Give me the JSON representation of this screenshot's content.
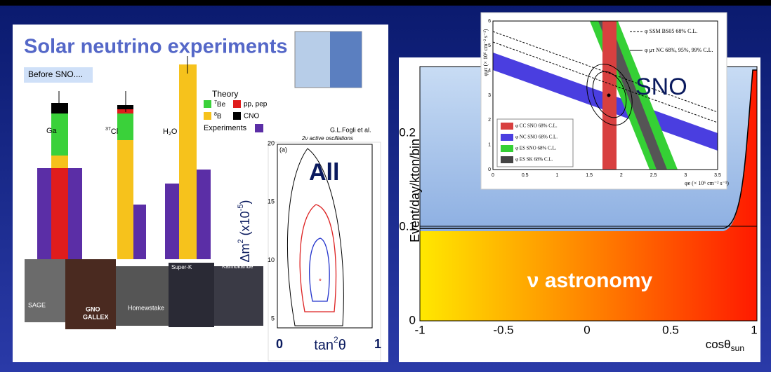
{
  "left_panel": {
    "title": "Solar neutrino experiments",
    "subtitle": "Before SNO....",
    "legend": {
      "theory": "Theory",
      "be7": {
        "sup": "7",
        "text": "Be"
      },
      "pp": "pp, pep",
      "b8": {
        "sup": "8",
        "text": "B"
      },
      "cno": "CNO",
      "experiments": "Experiments"
    },
    "experiments": [
      {
        "text": "Ga"
      },
      {
        "sup": "37",
        "text": "Cl"
      },
      {
        "text": "H",
        "sub": "2",
        "tail": "O"
      }
    ],
    "photos": [
      "SAGE",
      "GNO",
      "GALLEX",
      "Homewstake",
      "Super-K",
      "Kamiokande"
    ],
    "credit": "G.L.Fogli et al.",
    "credit_note": "2ν  active  oscillations",
    "contour": {
      "panel": "(a)",
      "yticks": [
        "5",
        "10",
        "15",
        "20"
      ],
      "xticks": [
        "0",
        "1"
      ],
      "ylabel": {
        "text": "Δm",
        "sup": "2",
        "tail": " (x10",
        "sup2": "-5",
        "end": ")"
      },
      "xlabel": {
        "text": "tan",
        "sup": "2",
        "tail": "θ"
      },
      "tag": "All"
    }
  },
  "right_panel": {
    "ylabel": "Event/day/kton/bin",
    "yticks": [
      "0",
      "0.1",
      "0.2"
    ],
    "xticks": [
      "-1",
      "-0.5",
      "0",
      "0.5",
      "1"
    ],
    "xlabel": {
      "text": "cosθ",
      "sub": "sun"
    },
    "tag": "ν astronomy",
    "inset": {
      "tag": "SNO",
      "lines": [
        "φ SSM BS05 68% C.L.",
        "φ μτ NC 68%, 95%, 99% C.L."
      ],
      "legend": [
        "φ CC SNO 68% C.L.",
        "φ NC SNO 68% C.L.",
        "φ ES SNO 68% C.L.",
        "φ ES SK 68% C.L."
      ],
      "xticks": [
        "0",
        "0.5",
        "1",
        "1.5",
        "2",
        "2.5",
        "3",
        "3.5"
      ],
      "yticks": [
        "0",
        "1",
        "2",
        "3",
        "4",
        "5",
        "6"
      ],
      "xlabel": "φe (× 10⁶ cm⁻² s⁻¹)",
      "ylabel": "φμτ (× 10⁶ cm⁻² s⁻¹)"
    }
  }
}
